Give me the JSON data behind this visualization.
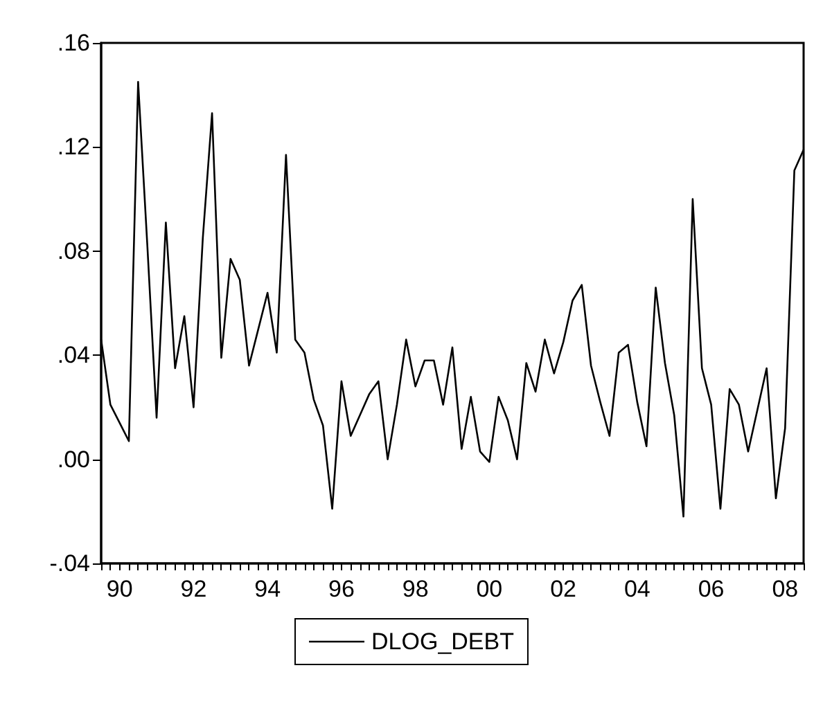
{
  "chart_data": {
    "type": "line",
    "categories": [
      null,
      null,
      "90",
      null,
      null,
      null,
      null,
      null,
      null,
      null,
      "92",
      null,
      null,
      null,
      null,
      null,
      null,
      null,
      "94",
      null,
      null,
      null,
      null,
      null,
      null,
      null,
      "96",
      null,
      null,
      null,
      null,
      null,
      null,
      null,
      "98",
      null,
      null,
      null,
      null,
      null,
      null,
      null,
      "00",
      null,
      null,
      null,
      null,
      null,
      null,
      null,
      "02",
      null,
      null,
      null,
      null,
      null,
      null,
      null,
      "04",
      null,
      null,
      null,
      null,
      null,
      null,
      null,
      "06",
      null,
      null,
      null,
      null,
      null,
      null,
      null,
      "08",
      null,
      null
    ],
    "series": [
      {
        "name": "DLOG_DEBT",
        "color": "#000000",
        "values": [
          0.046,
          0.021,
          0.014,
          0.007,
          0.145,
          0.082,
          0.016,
          0.091,
          0.035,
          0.055,
          0.02,
          0.085,
          0.133,
          0.039,
          0.077,
          0.069,
          0.036,
          0.05,
          0.064,
          0.041,
          0.117,
          0.046,
          0.041,
          0.023,
          0.013,
          -0.019,
          0.03,
          0.009,
          0.017,
          0.025,
          0.03,
          0.0,
          0.021,
          0.046,
          0.028,
          0.038,
          0.038,
          0.021,
          0.043,
          0.004,
          0.024,
          0.003,
          -0.001,
          0.024,
          0.015,
          0.0,
          0.037,
          0.026,
          0.046,
          0.033,
          0.045,
          0.061,
          0.067,
          0.036,
          0.022,
          0.009,
          0.041,
          0.044,
          0.022,
          0.005,
          0.066,
          0.037,
          0.017,
          -0.022,
          0.1,
          0.035,
          0.021,
          -0.019,
          0.027,
          0.021,
          0.003,
          0.019,
          0.035,
          -0.015,
          0.012,
          0.111,
          0.119
        ]
      }
    ],
    "ylim": [
      -0.04,
      0.16
    ],
    "yticks": [
      {
        "value": -0.04,
        "label": "-.04"
      },
      {
        "value": 0,
        "label": ".00"
      },
      {
        "value": 0.04,
        "label": ".04"
      },
      {
        "value": 0.08,
        "label": ".08"
      },
      {
        "value": 0.12,
        "label": ".12"
      },
      {
        "value": 0.16,
        "label": ".16"
      }
    ],
    "grid": false,
    "legend": "bottom",
    "marker": "none",
    "line_style": "solid"
  }
}
